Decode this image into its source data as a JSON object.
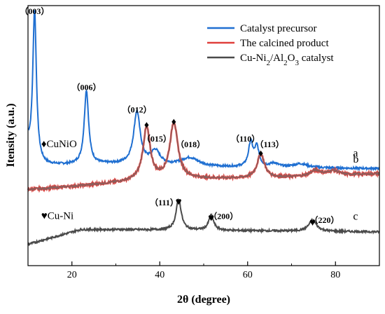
{
  "chart_data": {
    "type": "line",
    "title": "",
    "xlabel": "2θ (degree)",
    "ylabel": "Itensity (a.u.)",
    "xlim": [
      10,
      90
    ],
    "x_ticks": [
      20,
      40,
      60,
      80
    ],
    "y_ticks_visible": false,
    "grid": false,
    "legend_position": "top-right",
    "series": [
      {
        "name": "Catalyst precursor",
        "curve_label": "a",
        "color": "#1f6fd1",
        "baseline": 0.58,
        "peaks": [
          {
            "x": 11.5,
            "h": 3.9,
            "w": 0.5
          },
          {
            "x": 23.3,
            "h": 1.9,
            "w": 0.6
          },
          {
            "x": 34.8,
            "h": 1.35,
            "w": 0.9
          },
          {
            "x": 39.0,
            "h": 0.35,
            "w": 1.3
          },
          {
            "x": 46.8,
            "h": 0.22,
            "w": 2.5
          },
          {
            "x": 60.7,
            "h": 0.62,
            "w": 0.6
          },
          {
            "x": 62.1,
            "h": 0.5,
            "w": 0.6
          },
          {
            "x": 66.0,
            "h": 0.1,
            "w": 1.2
          },
          {
            "x": 72.0,
            "h": 0.1,
            "w": 2.0
          }
        ]
      },
      {
        "name": "The calcined product",
        "curve_label": "b",
        "color": "#e0403c",
        "overlay_color": "#6b6b6b",
        "baseline": 0.0,
        "peaks": [
          {
            "x": 37.0,
            "h": 1.35,
            "w": 1.0
          },
          {
            "x": 43.2,
            "h": 1.45,
            "w": 1.1
          },
          {
            "x": 63.0,
            "h": 0.62,
            "w": 1.0
          },
          {
            "x": 75.5,
            "h": 0.15,
            "w": 1.5
          },
          {
            "x": 79.5,
            "h": 0.12,
            "w": 1.5
          }
        ]
      },
      {
        "name": "Cu-Ni2/Al2O3 catalyst",
        "curve_label": "c",
        "color": "#4a4a4a",
        "baseline": -1.45,
        "peaks": [
          {
            "x": 44.3,
            "h": 0.8,
            "w": 0.7
          },
          {
            "x": 51.7,
            "h": 0.38,
            "w": 0.7
          },
          {
            "x": 74.8,
            "h": 0.28,
            "w": 1.1
          }
        ]
      }
    ],
    "annotations": {
      "peak_labels": [
        {
          "x": 11.5,
          "y": 4.48,
          "text": "（003）"
        },
        {
          "x": 23.3,
          "y": 2.52,
          "text": "（006）"
        },
        {
          "x": 34.8,
          "y": 1.95,
          "text": "（012）"
        },
        {
          "x": 39.3,
          "y": 1.2,
          "text": "（015）"
        },
        {
          "x": 47.0,
          "y": 1.05,
          "text": "（018）"
        },
        {
          "x": 59.5,
          "y": 1.2,
          "text": "（110）"
        },
        {
          "x": 65.0,
          "y": 1.05,
          "text": "（113）"
        },
        {
          "x": 41.0,
          "y": -0.45,
          "text": "（111）"
        },
        {
          "x": 54.5,
          "y": -0.8,
          "text": "（200）"
        },
        {
          "x": 77.5,
          "y": -0.9,
          "text": "（220）"
        }
      ],
      "diamond_markers": [
        {
          "x": 37.0,
          "y": 1.55
        },
        {
          "x": 43.2,
          "y": 1.63
        },
        {
          "x": 63.0,
          "y": 0.82
        }
      ],
      "heart_markers": [
        {
          "x": 44.3,
          "y": -0.44
        },
        {
          "x": 51.7,
          "y": -0.85
        },
        {
          "x": 74.8,
          "y": -0.97
        }
      ],
      "phase_labels": [
        {
          "symbol": "♦",
          "text": "CuNiO",
          "x": 13,
          "y": 1.05
        },
        {
          "symbol": "♥",
          "text": "Cu-Ni",
          "x": 13,
          "y": -0.8
        }
      ]
    }
  }
}
